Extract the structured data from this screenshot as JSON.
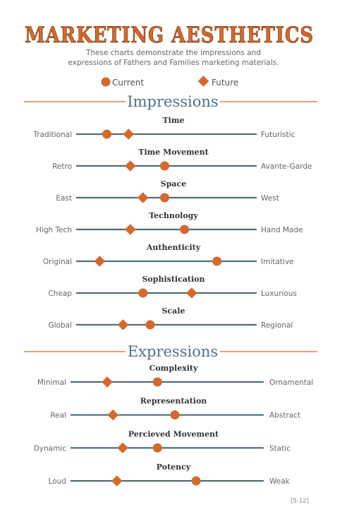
{
  "title": "MARKETING AESTHETICS",
  "subtitle_lines": [
    "These charts demonstrate the impressions and",
    "expressions of Fathers and Families marketing materials."
  ],
  "legend": {
    "current": "Current",
    "future": "Future"
  },
  "colors": {
    "accent": "#d4692c",
    "line": "#4f6d7a",
    "heading": "#4f7187",
    "rule": "#d4692c"
  },
  "page_number": "[5-12]",
  "chart_data": [
    {
      "type": "scatter",
      "section": "Impressions",
      "scale": [
        0,
        100
      ],
      "metrics": [
        {
          "name": "Time",
          "left": "Traditional",
          "right": "Futuristic",
          "current": 17,
          "future": 29
        },
        {
          "name": "Time Movement",
          "left": "Retro",
          "right": "Avante-Garde",
          "current": 49,
          "future": 30
        },
        {
          "name": "Space",
          "left": "East",
          "right": "West",
          "current": 49,
          "future": 37
        },
        {
          "name": "Technology",
          "left": "High Tech",
          "right": "Hand Made",
          "current": 60,
          "future": 30
        },
        {
          "name": "Authenticity",
          "left": "Original",
          "right": "Imitative",
          "current": 78,
          "future": 13
        },
        {
          "name": "Sophistication",
          "left": "Cheap",
          "right": "Luxurious",
          "current": 37,
          "future": 64
        },
        {
          "name": "Scale",
          "left": "Global",
          "right": "Regional",
          "current": 41,
          "future": 26
        }
      ]
    },
    {
      "type": "scatter",
      "section": "Expressions",
      "scale": [
        0,
        100
      ],
      "metrics": [
        {
          "name": "Complexity",
          "left": "Minimal",
          "right": "Ornamental",
          "current": 45,
          "future": 19
        },
        {
          "name": "Representation",
          "left": "Real",
          "right": "Abstract",
          "current": 54,
          "future": 22
        },
        {
          "name": "Percieved Movement",
          "left": "Dynamic",
          "right": "Static",
          "current": 45,
          "future": 27
        },
        {
          "name": "Potency",
          "left": "Loud",
          "right": "Weak",
          "current": 65,
          "future": 24
        }
      ]
    }
  ]
}
